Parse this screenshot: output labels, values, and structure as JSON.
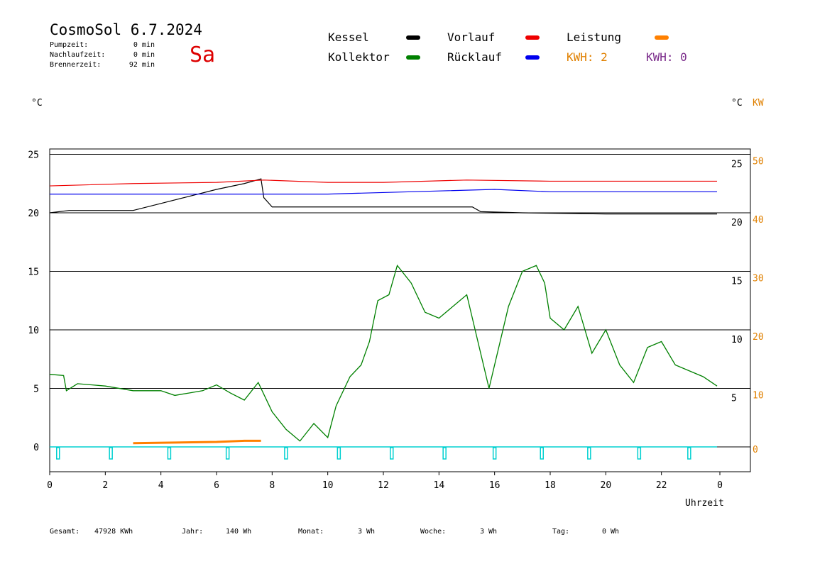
{
  "header": {
    "title": "CosmoSol 6.7.2024",
    "day": "Sa",
    "info": [
      {
        "label": "Pumpzeit:",
        "value": "0 min"
      },
      {
        "label": "Nachlaufzeit:",
        "value": "0 min"
      },
      {
        "label": "Brennerzeit:",
        "value": "92 min"
      }
    ]
  },
  "legend": {
    "items": [
      {
        "label": "Kessel",
        "color": "#000000"
      },
      {
        "label": "Kollektor",
        "color": "#008000"
      },
      {
        "label": "Vorlauf",
        "color": "#ee0000"
      },
      {
        "label": "Rücklauf",
        "color": "#0000ee"
      },
      {
        "label": "Leistung",
        "color": "#ff8000"
      }
    ],
    "kwh1": "KWH: 2",
    "kwh1_color": "#e08000",
    "kwh2": "KWH: 0",
    "kwh2_color": "#7a2a8a"
  },
  "units": {
    "left": "°C",
    "right": "°C",
    "right_kw": "KW"
  },
  "xlabel": "Uhrzeit",
  "footer": {
    "gesamt_label": "Gesamt:",
    "gesamt_value": "47928 KWh",
    "jahr_label": "Jahr:",
    "jahr_value": "140 Wh",
    "monat_label": "Monat:",
    "monat_value": "3 Wh",
    "woche_label": "Woche:",
    "woche_value": "3 Wh",
    "tag_label": "Tag:",
    "tag_value": "0 Wh"
  },
  "chart_data": {
    "type": "line",
    "x_ticks": [
      "0",
      "2",
      "4",
      "6",
      "8",
      "10",
      "12",
      "14",
      "16",
      "18",
      "20",
      "22",
      "0"
    ],
    "y_left_ticks": [
      "25",
      "20",
      "15",
      "10",
      "5",
      "0"
    ],
    "y_right_ticks": [
      "25",
      "20",
      "15",
      "10",
      "5"
    ],
    "y_right_kw_ticks": [
      "50",
      "40",
      "30",
      "20",
      "10",
      "0"
    ],
    "xlim": [
      0,
      24
    ],
    "ylim": [
      -1.5,
      25.5
    ],
    "grid_y": [
      5,
      10,
      15,
      20,
      25
    ],
    "series": [
      {
        "name": "Kessel",
        "color": "#000000",
        "points": [
          [
            0,
            20
          ],
          [
            0.7,
            20.2
          ],
          [
            3,
            20.2
          ],
          [
            4,
            20.8
          ],
          [
            5,
            21.4
          ],
          [
            6,
            22
          ],
          [
            7,
            22.5
          ],
          [
            7.6,
            22.9
          ],
          [
            7.7,
            21.3
          ],
          [
            8,
            20.5
          ],
          [
            10,
            20.5
          ],
          [
            12,
            20.5
          ],
          [
            15.2,
            20.5
          ],
          [
            15.5,
            20.1
          ],
          [
            17,
            20
          ],
          [
            20,
            19.9
          ],
          [
            24,
            19.9
          ]
        ]
      },
      {
        "name": "Vorlauf",
        "color": "#ee0000",
        "points": [
          [
            0,
            22.3
          ],
          [
            3,
            22.5
          ],
          [
            6,
            22.6
          ],
          [
            7.7,
            22.8
          ],
          [
            10,
            22.6
          ],
          [
            12,
            22.6
          ],
          [
            15,
            22.8
          ],
          [
            18,
            22.7
          ],
          [
            24,
            22.7
          ]
        ]
      },
      {
        "name": "Rücklauf",
        "color": "#0000ee",
        "points": [
          [
            0,
            21.6
          ],
          [
            7.7,
            21.6
          ],
          [
            10,
            21.6
          ],
          [
            13,
            21.8
          ],
          [
            16,
            22
          ],
          [
            18,
            21.8
          ],
          [
            21,
            21.8
          ],
          [
            24,
            21.8
          ]
        ]
      },
      {
        "name": "Kollektor",
        "color": "#008000",
        "points": [
          [
            0,
            6.2
          ],
          [
            0.5,
            6.1
          ],
          [
            0.6,
            4.8
          ],
          [
            1,
            5.4
          ],
          [
            2,
            5.2
          ],
          [
            3,
            4.8
          ],
          [
            4,
            4.8
          ],
          [
            4.5,
            4.4
          ],
          [
            5,
            4.6
          ],
          [
            5.5,
            4.8
          ],
          [
            6,
            5.3
          ],
          [
            6.5,
            4.6
          ],
          [
            7,
            4
          ],
          [
            7.5,
            5.5
          ],
          [
            8,
            3
          ],
          [
            8.5,
            1.5
          ],
          [
            9,
            0.5
          ],
          [
            9.5,
            2
          ],
          [
            10,
            0.8
          ],
          [
            10.3,
            3.5
          ],
          [
            10.8,
            6
          ],
          [
            11.2,
            7
          ],
          [
            11.5,
            9
          ],
          [
            11.8,
            12.5
          ],
          [
            12.2,
            13
          ],
          [
            12.5,
            15.5
          ],
          [
            13,
            14
          ],
          [
            13.5,
            11.5
          ],
          [
            14,
            11
          ],
          [
            14.5,
            12
          ],
          [
            15,
            13
          ],
          [
            15.3,
            10
          ],
          [
            15.8,
            5
          ],
          [
            16.2,
            9
          ],
          [
            16.5,
            12
          ],
          [
            17,
            15
          ],
          [
            17.5,
            15.5
          ],
          [
            17.8,
            14
          ],
          [
            18,
            11
          ],
          [
            18.5,
            10
          ],
          [
            19,
            12
          ],
          [
            19.5,
            8
          ],
          [
            20,
            10
          ],
          [
            20.5,
            7
          ],
          [
            21,
            5.5
          ],
          [
            21.5,
            8.5
          ],
          [
            22,
            9
          ],
          [
            22.5,
            7
          ],
          [
            23,
            6.5
          ],
          [
            23.5,
            6
          ],
          [
            24,
            5.2
          ]
        ]
      }
    ],
    "leistung_points": [
      [
        3,
        0.2
      ],
      [
        6,
        0.3
      ],
      [
        7,
        0.4
      ],
      [
        7.6,
        0.4
      ]
    ],
    "markers_x": [
      0.3,
      2.2,
      4.3,
      6.4,
      8.5,
      10.4,
      12.3,
      14.2,
      16,
      17.7,
      19.4,
      21.2,
      23
    ]
  }
}
